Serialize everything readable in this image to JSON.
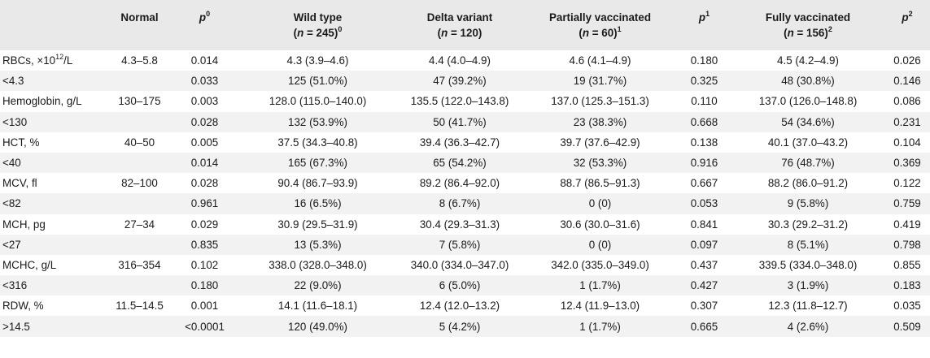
{
  "header": {
    "col0": "",
    "normal": "Normal",
    "p0": {
      "letter": "p",
      "sup": "0"
    },
    "wild_type": {
      "line1": "Wild type",
      "line2_pre": "(",
      "n": "n",
      "line2_mid": " = 245)",
      "sup": "0"
    },
    "delta": {
      "line1": "Delta variant",
      "line2_pre": "(",
      "n": "n",
      "line2_mid": " = 120)",
      "sup": ""
    },
    "partial": {
      "line1": "Partially vaccinated",
      "line2_pre": "(",
      "n": "n",
      "line2_mid": " = 60)",
      "sup": "1"
    },
    "p1": {
      "letter": "p",
      "sup": "1"
    },
    "fully": {
      "line1": "Fully vaccinated",
      "line2_pre": "(",
      "n": "n",
      "line2_mid": " = 156)",
      "sup": "2"
    },
    "p2": {
      "letter": "p",
      "sup": "2"
    }
  },
  "rows": [
    {
      "label": "RBCs, ×10",
      "label_sup": "12",
      "label_post": "/L",
      "normal": "4.3–5.8",
      "p0": "0.014",
      "wild": "4.3 (3.9–4.6)",
      "delta": "4.4 (4.0–4.9)",
      "partial": "4.6 (4.1–4.9)",
      "p1": "0.180",
      "fully": "4.5 (4.2–4.9)",
      "p2": "0.026"
    },
    {
      "label": "<4.3",
      "label_sup": "",
      "label_post": "",
      "normal": "",
      "p0": "0.033",
      "wild": "125 (51.0%)",
      "delta": "47 (39.2%)",
      "partial": "19 (31.7%)",
      "p1": "0.325",
      "fully": "48 (30.8%)",
      "p2": "0.146"
    },
    {
      "label": "Hemoglobin, g/L",
      "label_sup": "",
      "label_post": "",
      "normal": "130–175",
      "p0": "0.003",
      "wild": "128.0 (115.0–140.0)",
      "delta": "135.5 (122.0–143.8)",
      "partial": "137.0 (125.3–151.3)",
      "p1": "0.110",
      "fully": "137.0 (126.0–148.8)",
      "p2": "0.086"
    },
    {
      "label": "<130",
      "label_sup": "",
      "label_post": "",
      "normal": "",
      "p0": "0.028",
      "wild": "132 (53.9%)",
      "delta": "50 (41.7%)",
      "partial": "23 (38.3%)",
      "p1": "0.668",
      "fully": "54 (34.6%)",
      "p2": "0.231"
    },
    {
      "label": "HCT, %",
      "label_sup": "",
      "label_post": "",
      "normal": "40–50",
      "p0": "0.005",
      "wild": "37.5 (34.3–40.8)",
      "delta": "39.4 (36.3–42.7)",
      "partial": "39.7 (37.6–42.9)",
      "p1": "0.138",
      "fully": "40.1 (37.0–43.2)",
      "p2": "0.104"
    },
    {
      "label": "<40",
      "label_sup": "",
      "label_post": "",
      "normal": "",
      "p0": "0.014",
      "wild": "165 (67.3%)",
      "delta": "65 (54.2%)",
      "partial": "32 (53.3%)",
      "p1": "0.916",
      "fully": "76 (48.7%)",
      "p2": "0.369"
    },
    {
      "label": "MCV, fl",
      "label_sup": "",
      "label_post": "",
      "normal": "82–100",
      "p0": "0.028",
      "wild": "90.4 (86.7–93.9)",
      "delta": "89.2 (86.4–92.0)",
      "partial": "88.7 (86.5–91.3)",
      "p1": "0.667",
      "fully": "88.2 (86.0–91.2)",
      "p2": "0.122"
    },
    {
      "label": "<82",
      "label_sup": "",
      "label_post": "",
      "normal": "",
      "p0": "0.961",
      "wild": "16 (6.5%)",
      "delta": "8 (6.7%)",
      "partial": "0 (0)",
      "p1": "0.053",
      "fully": "9 (5.8%)",
      "p2": "0.759"
    },
    {
      "label": "MCH, pg",
      "label_sup": "",
      "label_post": "",
      "normal": "27–34",
      "p0": "0.029",
      "wild": "30.9 (29.5–31.9)",
      "delta": "30.4 (29.3–31.3)",
      "partial": "30.6 (30.0–31.6)",
      "p1": "0.841",
      "fully": "30.3 (29.2–31.2)",
      "p2": "0.419"
    },
    {
      "label": "<27",
      "label_sup": "",
      "label_post": "",
      "normal": "",
      "p0": "0.835",
      "wild": "13 (5.3%)",
      "delta": "7 (5.8%)",
      "partial": "0 (0)",
      "p1": "0.097",
      "fully": "8 (5.1%)",
      "p2": "0.798"
    },
    {
      "label": "MCHC, g/L",
      "label_sup": "",
      "label_post": "",
      "normal": "316–354",
      "p0": "0.102",
      "wild": "338.0 (328.0–348.0)",
      "delta": "340.0 (334.0–347.0)",
      "partial": "342.0 (335.0–349.0)",
      "p1": "0.437",
      "fully": "339.5 (334.0–348.0)",
      "p2": "0.855"
    },
    {
      "label": "<316",
      "label_sup": "",
      "label_post": "",
      "normal": "",
      "p0": "0.180",
      "wild": "22 (9.0%)",
      "delta": "6 (5.0%)",
      "partial": "1 (1.7%)",
      "p1": "0.427",
      "fully": "3 (1.9%)",
      "p2": "0.183"
    },
    {
      "label": "RDW, %",
      "label_sup": "",
      "label_post": "",
      "normal": "11.5–14.5",
      "p0": "0.001",
      "wild": "14.1 (11.6–18.1)",
      "delta": "12.4 (12.0–13.2)",
      "partial": "12.4 (11.9–13.0)",
      "p1": "0.307",
      "fully": "12.3 (11.8–12.7)",
      "p2": "0.035"
    },
    {
      "label": ">14.5",
      "label_sup": "",
      "label_post": "",
      "normal": "",
      "p0": "<0.0001",
      "wild": "120 (49.0%)",
      "delta": "5 (4.2%)",
      "partial": "1 (1.7%)",
      "p1": "0.665",
      "fully": "4 (2.6%)",
      "p2": "0.509"
    }
  ]
}
